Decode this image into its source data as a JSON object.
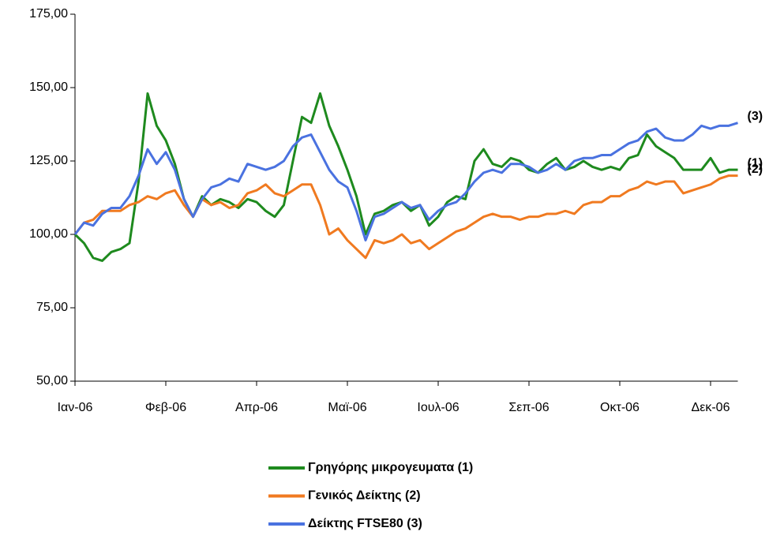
{
  "chart_data": {
    "type": "line",
    "categories": [
      "Ιαν-06",
      null,
      null,
      null,
      null,
      null,
      null,
      null,
      null,
      null,
      "Φεβ-06",
      null,
      null,
      null,
      null,
      null,
      null,
      null,
      null,
      null,
      "Απρ-06",
      null,
      null,
      null,
      null,
      null,
      null,
      null,
      null,
      null,
      "Μαϊ-06",
      null,
      null,
      null,
      null,
      null,
      null,
      null,
      null,
      null,
      "Ιουλ-06",
      null,
      null,
      null,
      null,
      null,
      null,
      null,
      null,
      null,
      "Σεπ-06",
      null,
      null,
      null,
      null,
      null,
      null,
      null,
      null,
      null,
      "Οκτ-06",
      null,
      null,
      null,
      null,
      null,
      null,
      null,
      null,
      null,
      "Δεκ-06",
      null,
      null,
      null
    ],
    "ylim": [
      50,
      175
    ],
    "yticks": [
      {
        "value": 50,
        "label": "50,00"
      },
      {
        "value": 75,
        "label": "75,00"
      },
      {
        "value": 100,
        "label": "100,00"
      },
      {
        "value": 125,
        "label": "125,00"
      },
      {
        "value": 150,
        "label": "150,00"
      },
      {
        "value": 175,
        "label": "175,00"
      }
    ],
    "grid": false,
    "legend": "bottom",
    "series": [
      {
        "name": "Γρηγόρης μικρογευματα (1)",
        "end_label": "(1)",
        "color": "#1e8a1e",
        "values": [
          100,
          97,
          92,
          91,
          94,
          95,
          97,
          118,
          148,
          137,
          132,
          124,
          112,
          106,
          113,
          110,
          112,
          111,
          109,
          112,
          111,
          108,
          106,
          110,
          125,
          140,
          138,
          148,
          137,
          130,
          122,
          113,
          100,
          107,
          108,
          110,
          111,
          108,
          110,
          103,
          106,
          111,
          113,
          112,
          125,
          129,
          124,
          123,
          126,
          125,
          122,
          121,
          124,
          126,
          122,
          123,
          125,
          123,
          122,
          123,
          122,
          126,
          127,
          134,
          130,
          128,
          126,
          122,
          122,
          122,
          126,
          121,
          122,
          122
        ]
      },
      {
        "name": "Γενικός Δείκτης (2)",
        "end_label": "(2)",
        "color": "#f07a20",
        "values": [
          100,
          104,
          105,
          108,
          108,
          108,
          110,
          111,
          113,
          112,
          114,
          115,
          110,
          106,
          112,
          110,
          111,
          109,
          110,
          114,
          115,
          117,
          114,
          113,
          115,
          117,
          117,
          110,
          100,
          102,
          98,
          95,
          92,
          98,
          97,
          98,
          100,
          97,
          98,
          95,
          97,
          99,
          101,
          102,
          104,
          106,
          107,
          106,
          106,
          105,
          106,
          106,
          107,
          107,
          108,
          107,
          110,
          111,
          111,
          113,
          113,
          115,
          116,
          118,
          117,
          118,
          118,
          114,
          115,
          116,
          117,
          119,
          120,
          120
        ]
      },
      {
        "name": "Δείκτης FTSE80 (3)",
        "end_label": "(3)",
        "color": "#4a72e0",
        "values": [
          100,
          104,
          103,
          107,
          109,
          109,
          113,
          120,
          129,
          124,
          128,
          122,
          112,
          106,
          112,
          116,
          117,
          119,
          118,
          124,
          123,
          122,
          123,
          125,
          130,
          133,
          134,
          128,
          122,
          118,
          116,
          108,
          98,
          106,
          107,
          109,
          111,
          109,
          110,
          105,
          108,
          110,
          111,
          114,
          118,
          121,
          122,
          121,
          124,
          124,
          123,
          121,
          122,
          124,
          122,
          125,
          126,
          126,
          127,
          127,
          129,
          131,
          132,
          135,
          136,
          133,
          132,
          132,
          134,
          137,
          136,
          137,
          137,
          138
        ]
      }
    ]
  }
}
